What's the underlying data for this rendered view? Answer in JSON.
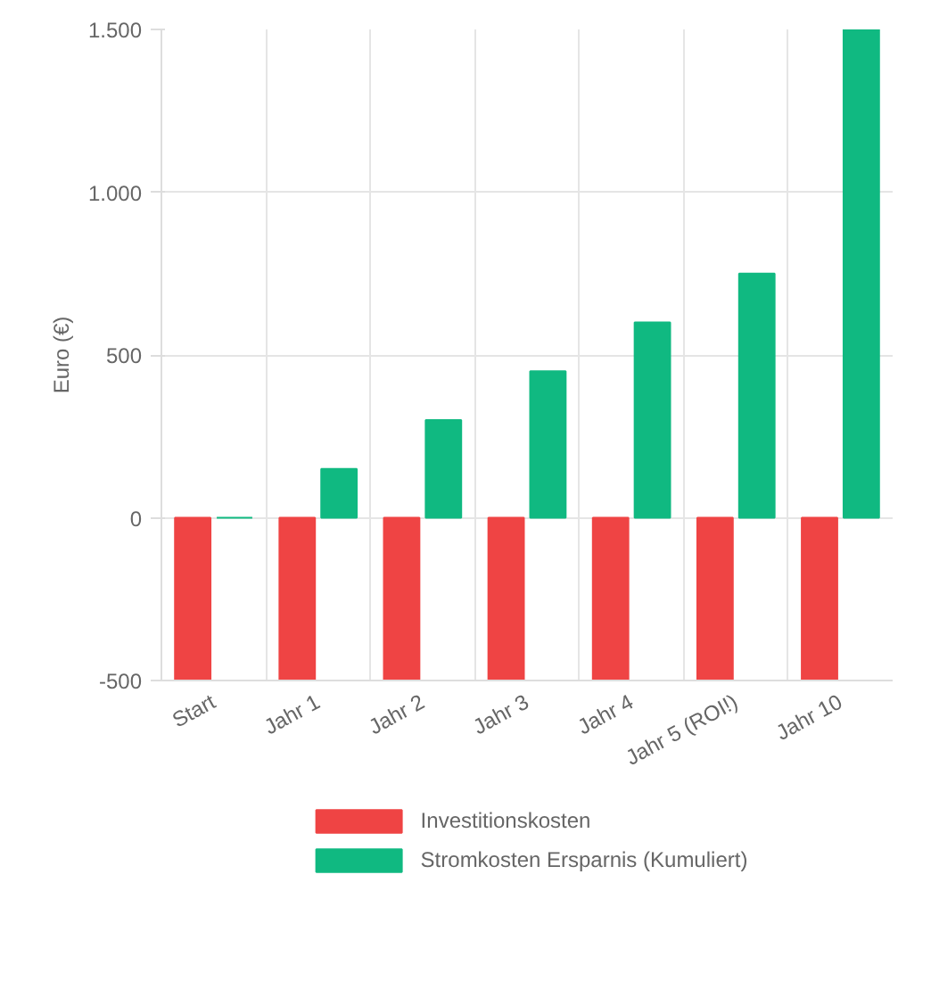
{
  "chart_data": {
    "type": "bar",
    "ylabel": "Euro (€)",
    "categories": [
      "Start",
      "Jahr 1",
      "Jahr 2",
      "Jahr 3",
      "Jahr 4",
      "Jahr 5 (ROI!)",
      "Jahr 10"
    ],
    "series": [
      {
        "name": "Investitionskosten",
        "color": "#ef4444",
        "values": [
          -500,
          -500,
          -500,
          -500,
          -500,
          -500,
          -500
        ]
      },
      {
        "name": "Stromkosten Ersparnis (Kumuliert)",
        "color": "#10b981",
        "values": [
          0,
          150,
          300,
          450,
          600,
          750,
          1500
        ]
      }
    ],
    "ylim": [
      -500,
      1500
    ],
    "yticks": [
      -500,
      0,
      500,
      {
        "value": 1000,
        "label": "1.000"
      },
      {
        "value": 1500,
        "label": "1.500"
      }
    ],
    "grid": true,
    "legend": "bottom"
  }
}
